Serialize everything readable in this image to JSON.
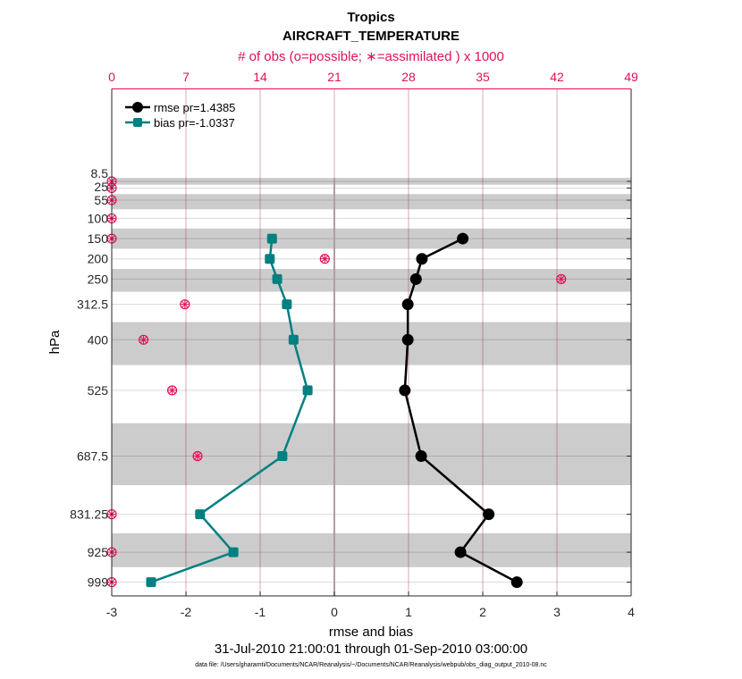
{
  "chart_data": {
    "type": "line",
    "title": "Tropics",
    "subtitle": "AIRCRAFT_TEMPERATURE",
    "top_axis_label": "# of obs (o=possible; ∗=assimilated ) x 1000",
    "xlabel": "rmse and bias",
    "ylabel": "hPa",
    "date_range": "31-Jul-2010 21:00:01 through 01-Sep-2010 03:00:00",
    "data_file": "data file: /Users/gharamti/Documents/NCAR/Reanalysis/~/Documents/NCAR/Reanalysis/webpub/obs_diag_output_2010-08.nc",
    "xlim": [
      -3,
      4
    ],
    "x_ticks": [
      "-3",
      "-2",
      "-1",
      "0",
      "1",
      "2",
      "3",
      "4"
    ],
    "top_xlim": [
      0,
      49
    ],
    "top_ticks": [
      "0",
      "7",
      "14",
      "21",
      "28",
      "35",
      "42",
      "49"
    ],
    "ylim": [
      -220,
      1033
    ],
    "y_reversed": true,
    "levels": [
      8.5,
      25,
      55,
      100,
      150,
      200,
      250,
      312.5,
      400,
      525,
      687.5,
      831.25,
      925,
      999
    ],
    "level_labels": [
      "8.5",
      "25",
      "55",
      "100",
      "150",
      "200",
      "250",
      "312.5",
      "400",
      "525",
      "687.5",
      "831.25",
      "925",
      "999"
    ],
    "shaded_levels": [
      8.5,
      55,
      150,
      250,
      400,
      687.5,
      925
    ],
    "legend_placement": "top-left",
    "series": [
      {
        "name": "rmse pr=1.4385",
        "color": "#000000",
        "marker": "circle",
        "levels": [
          150,
          200,
          250,
          312.5,
          400,
          525,
          687.5,
          831.25,
          925,
          999
        ],
        "values": [
          1.73,
          1.18,
          1.1,
          0.99,
          0.99,
          0.95,
          1.17,
          2.08,
          1.7,
          2.46
        ]
      },
      {
        "name": "bias pr=-1.0337",
        "color": "#008080",
        "marker": "square",
        "levels": [
          150,
          200,
          250,
          312.5,
          400,
          525,
          687.5,
          831.25,
          925,
          999
        ],
        "values": [
          -0.84,
          -0.87,
          -0.77,
          -0.64,
          -0.55,
          -0.36,
          -0.7,
          -1.81,
          -1.36,
          -2.47
        ]
      }
    ],
    "obs_counts": {
      "color": "#e0105a",
      "levels": [
        8.5,
        25,
        55,
        100,
        150,
        200,
        250,
        312.5,
        400,
        525,
        687.5,
        831.25,
        925,
        999
      ],
      "possible": [
        0,
        0,
        0,
        0,
        0,
        20.1,
        42.4,
        6.9,
        3.0,
        5.7,
        8.1,
        0,
        0,
        0
      ],
      "assimilated": [
        0,
        0,
        0,
        0,
        0,
        20.1,
        42.4,
        6.9,
        3.0,
        5.7,
        8.1,
        0,
        0,
        0
      ]
    }
  }
}
